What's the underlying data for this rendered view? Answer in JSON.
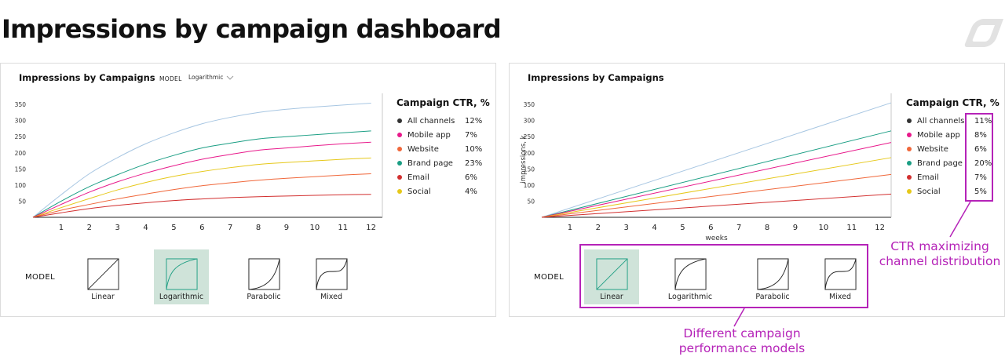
{
  "page": {
    "title": "Impressions by campaign dashboard"
  },
  "colors": {
    "accent": "#b523b8",
    "selected_model_bg": "#cfe3d9",
    "selected_model_stroke": "#1f9e83",
    "grey_line": "#a7c6e2"
  },
  "icons": {
    "logo": "brand-logo-icon",
    "dropdown": "chevron-down-icon"
  },
  "left_panel": {
    "title": "Impressions by Campaigns",
    "model_label": "MODEL",
    "model_selected": "Logarithmic",
    "legend_title": "Campaign CTR, %",
    "legend": [
      {
        "name": "All channels",
        "ctr": "12%",
        "color": "#333333"
      },
      {
        "name": "Mobile app",
        "ctr": "7%",
        "color": "#e8198b"
      },
      {
        "name": "Website",
        "ctr": "10%",
        "color": "#f0673a"
      },
      {
        "name": "Brand page",
        "ctr": "23%",
        "color": "#1a9e84"
      },
      {
        "name": "Email",
        "ctr": "6%",
        "color": "#d22f2f"
      },
      {
        "name": "Social",
        "ctr": "4%",
        "color": "#e6c81a"
      }
    ],
    "models_label": "MODEL",
    "models": [
      "Linear",
      "Logarithmic",
      "Parabolic",
      "Mixed"
    ],
    "selected_model": "Logarithmic"
  },
  "right_panel": {
    "title": "Impressions by Campaigns",
    "legend_title": "Campaign CTR, %",
    "legend": [
      {
        "name": "All channels",
        "ctr": "11%",
        "color": "#333333"
      },
      {
        "name": "Mobile app",
        "ctr": "8%",
        "color": "#e8198b"
      },
      {
        "name": "Website",
        "ctr": "6%",
        "color": "#f0673a"
      },
      {
        "name": "Brand page",
        "ctr": "20%",
        "color": "#1a9e84"
      },
      {
        "name": "Email",
        "ctr": "7%",
        "color": "#d22f2f"
      },
      {
        "name": "Social",
        "ctr": "5%",
        "color": "#e6c81a"
      }
    ],
    "models_label": "MODEL",
    "models": [
      "Linear",
      "Logarithmic",
      "Parabolic",
      "Mixed"
    ],
    "selected_model": "Linear"
  },
  "annotations": {
    "ctr": "CTR maximizing\nchannel distribution",
    "models": "Different campaign\nperformance models"
  },
  "chart_data": [
    {
      "type": "line",
      "title": "Impressions by Campaigns",
      "xlabel": "",
      "ylabel": "",
      "x": [
        0,
        1,
        2,
        3,
        4,
        5,
        6,
        7,
        8,
        9,
        10,
        11,
        12
      ],
      "x_ticks": [
        1,
        2,
        3,
        4,
        5,
        6,
        7,
        8,
        9,
        10,
        11,
        12
      ],
      "y_ticks": [
        50,
        100,
        150,
        200,
        250,
        300,
        350
      ],
      "xlim": [
        0,
        12.4
      ],
      "ylim": [
        0,
        360
      ],
      "grid": false,
      "legend_position": "right",
      "series": [
        {
          "color": "#a7c6e2",
          "values": [
            0,
            70,
            135,
            185,
            228,
            262,
            290,
            310,
            325,
            335,
            342,
            348,
            354
          ]
        },
        {
          "color": "#1a9e84",
          "values": [
            0,
            50,
            95,
            132,
            165,
            192,
            215,
            230,
            243,
            250,
            256,
            262,
            268
          ]
        },
        {
          "color": "#e8198b",
          "values": [
            0,
            40,
            78,
            110,
            137,
            160,
            180,
            195,
            208,
            215,
            222,
            228,
            233
          ]
        },
        {
          "color": "#e6c81a",
          "values": [
            0,
            30,
            58,
            85,
            108,
            127,
            142,
            154,
            164,
            170,
            175,
            180,
            184
          ]
        },
        {
          "color": "#f0673a",
          "values": [
            0,
            22,
            40,
            57,
            72,
            86,
            98,
            107,
            115,
            121,
            126,
            131,
            135
          ]
        },
        {
          "color": "#d22f2f",
          "values": [
            0,
            14,
            27,
            37,
            45,
            52,
            57,
            61,
            64,
            66,
            68,
            70,
            71
          ]
        }
      ]
    },
    {
      "type": "line",
      "title": "Impressions by Campaigns",
      "xlabel": "weeks",
      "ylabel": "impressions, k",
      "x": [
        0,
        12.4
      ],
      "x_ticks": [
        1,
        2,
        3,
        4,
        5,
        6,
        7,
        8,
        9,
        10,
        11,
        12
      ],
      "y_ticks": [
        50,
        100,
        150,
        200,
        250,
        300,
        350
      ],
      "xlim": [
        0,
        12.4
      ],
      "ylim": [
        0,
        360
      ],
      "grid": false,
      "legend_position": "right",
      "series": [
        {
          "color": "#a7c6e2",
          "values": [
            0,
            355
          ]
        },
        {
          "color": "#1a9e84",
          "values": [
            0,
            268
          ]
        },
        {
          "color": "#e8198b",
          "values": [
            0,
            232
          ]
        },
        {
          "color": "#e6c81a",
          "values": [
            0,
            185
          ]
        },
        {
          "color": "#f0673a",
          "values": [
            0,
            133
          ]
        },
        {
          "color": "#d22f2f",
          "values": [
            0,
            72
          ]
        }
      ]
    }
  ]
}
